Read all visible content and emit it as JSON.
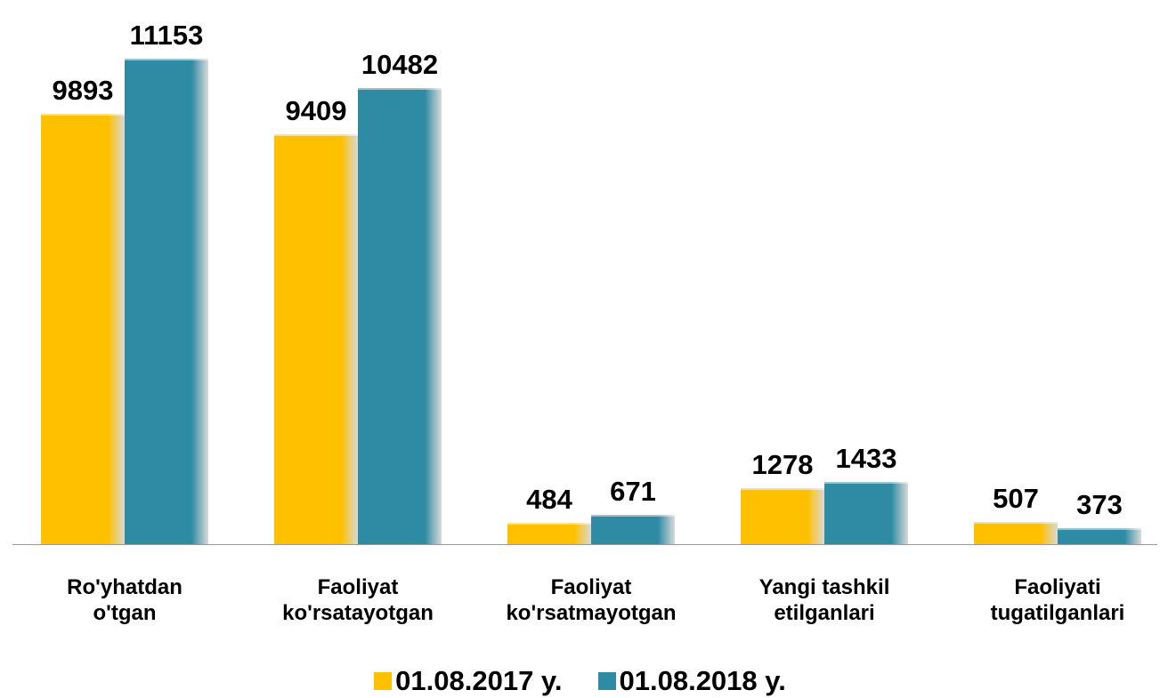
{
  "chart_data": {
    "type": "bar",
    "categories": [
      "Ro'yhatdan\no'tgan",
      "Faoliyat\nko'rsatayotgan",
      "Faoliyat\nko'rsatmayotgan",
      "Yangi tashkil\netilganlari",
      "Faoliyati\ntugatilganlari"
    ],
    "series": [
      {
        "name": "01.08.2017 y.",
        "color": "#ffc000",
        "values": [
          9893,
          9409,
          484,
          1278,
          507
        ]
      },
      {
        "name": "01.08.2018 y.",
        "color": "#2f8aa3",
        "values": [
          11153,
          10482,
          671,
          1433,
          373
        ]
      }
    ],
    "legend": "bottom"
  }
}
